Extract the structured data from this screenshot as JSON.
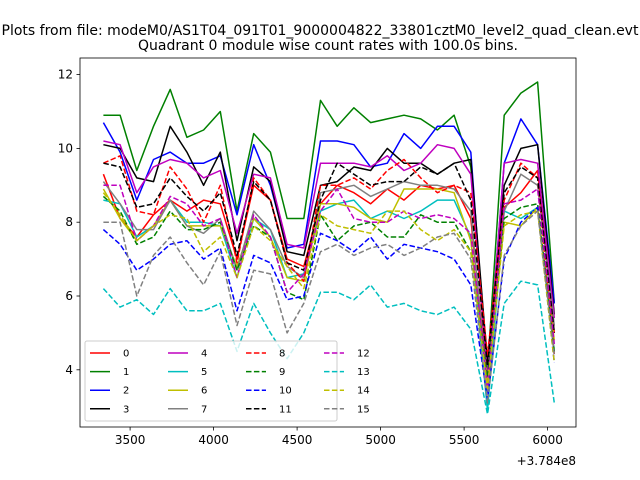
{
  "figure": {
    "suptitle": "Plots from file: modeM0/AS1T04_091T01_9000004822_33801cztM0_level2_quad_clean.evt"
  },
  "chart_data": {
    "type": "line",
    "title": "Quadrant 0 module wise count rates with 100.0s bins.",
    "xlabel": "",
    "ylabel": "",
    "x_offset_label": "+3.784e8",
    "xlim": [
      3200,
      6170
    ],
    "ylim": [
      2.45,
      12.45
    ],
    "xticks": [
      3500,
      4000,
      4500,
      5000,
      5500,
      6000
    ],
    "yticks": [
      4,
      6,
      8,
      10,
      12
    ],
    "x": [
      3340,
      3440,
      3540,
      3640,
      3740,
      3840,
      3940,
      4040,
      4140,
      4240,
      4340,
      4440,
      4540,
      4640,
      4740,
      4840,
      4940,
      5040,
      5140,
      5240,
      5340,
      5440,
      5540,
      5640,
      5740,
      5840,
      5940,
      6040
    ],
    "legend_position": "lower-left",
    "series": [
      {
        "name": "0",
        "color": "#ff0000",
        "dash": "solid",
        "values": [
          9.3,
          8.1,
          7.6,
          8.2,
          8.6,
          8.3,
          8.6,
          8.5,
          7.0,
          9.0,
          8.6,
          7.0,
          6.8,
          8.5,
          9.0,
          8.8,
          8.5,
          8.9,
          8.6,
          9.0,
          8.9,
          9.0,
          8.1,
          3.7,
          8.4,
          8.8,
          9.4,
          5.0
        ]
      },
      {
        "name": "1",
        "color": "#008000",
        "dash": "solid",
        "values": [
          10.9,
          10.9,
          9.4,
          10.6,
          11.6,
          10.3,
          10.5,
          11.0,
          8.3,
          10.4,
          9.9,
          8.1,
          8.1,
          11.3,
          10.6,
          11.1,
          10.7,
          10.8,
          10.9,
          10.8,
          10.5,
          10.9,
          9.5,
          4.0,
          10.9,
          11.5,
          11.8,
          5.8
        ]
      },
      {
        "name": "2",
        "color": "#0000ff",
        "dash": "solid",
        "values": [
          10.7,
          9.9,
          8.6,
          9.7,
          9.9,
          9.6,
          9.6,
          9.8,
          8.2,
          10.1,
          9.0,
          7.3,
          7.4,
          10.2,
          10.2,
          10.1,
          9.5,
          9.6,
          10.4,
          10.0,
          10.6,
          10.6,
          9.9,
          3.8,
          9.6,
          10.8,
          10.1,
          5.8
        ]
      },
      {
        "name": "3",
        "color": "#000000",
        "dash": "solid",
        "values": [
          10.1,
          10.0,
          9.2,
          9.1,
          10.6,
          9.9,
          9.0,
          9.9,
          7.5,
          9.5,
          9.1,
          7.2,
          7.1,
          9.0,
          9.1,
          9.5,
          9.4,
          10.0,
          9.6,
          9.6,
          9.3,
          9.6,
          9.7,
          4.2,
          9.0,
          10.0,
          10.1,
          5.5
        ]
      },
      {
        "name": "4",
        "color": "#bf00bf",
        "dash": "solid",
        "values": [
          10.2,
          10.1,
          8.8,
          9.5,
          9.7,
          9.6,
          9.2,
          9.4,
          7.7,
          9.3,
          9.2,
          7.4,
          7.3,
          9.6,
          9.6,
          9.6,
          9.5,
          9.8,
          9.4,
          9.6,
          10.1,
          10.0,
          9.3,
          3.8,
          9.6,
          9.7,
          9.6,
          5.4
        ]
      },
      {
        "name": "5",
        "color": "#00bfbf",
        "dash": "solid",
        "values": [
          8.6,
          8.5,
          7.6,
          7.9,
          8.6,
          8.0,
          8.0,
          7.9,
          6.5,
          8.1,
          7.8,
          6.5,
          6.6,
          8.3,
          8.5,
          8.6,
          8.1,
          8.3,
          8.1,
          8.3,
          8.6,
          8.6,
          7.6,
          2.9,
          8.3,
          8.1,
          8.4,
          4.5
        ]
      },
      {
        "name": "6",
        "color": "#bfbf00",
        "dash": "solid",
        "values": [
          8.9,
          8.1,
          7.5,
          7.9,
          8.6,
          7.9,
          7.9,
          7.9,
          6.8,
          8.1,
          7.6,
          6.5,
          6.4,
          8.5,
          8.5,
          8.4,
          8.1,
          8.0,
          8.9,
          8.9,
          8.9,
          8.8,
          7.5,
          3.7,
          8.0,
          7.9,
          8.4,
          4.8
        ]
      },
      {
        "name": "7",
        "color": "#808080",
        "dash": "solid",
        "values": [
          9.1,
          8.5,
          7.8,
          7.8,
          8.6,
          7.9,
          7.7,
          8.1,
          6.7,
          8.3,
          7.8,
          6.8,
          6.5,
          8.8,
          8.9,
          9.0,
          8.7,
          8.9,
          9.1,
          9.0,
          9.0,
          8.9,
          8.3,
          3.4,
          8.3,
          9.3,
          9.0,
          5.2
        ]
      },
      {
        "name": "8",
        "color": "#ff0000",
        "dash": "dashed",
        "values": [
          9.6,
          9.8,
          8.3,
          8.2,
          9.5,
          8.9,
          8.0,
          9.0,
          6.9,
          9.2,
          8.6,
          6.9,
          6.4,
          9.0,
          9.0,
          9.2,
          8.9,
          9.4,
          9.7,
          9.2,
          8.8,
          9.0,
          8.8,
          4.4,
          8.6,
          9.6,
          9.2,
          4.4
        ]
      },
      {
        "name": "9",
        "color": "#008000",
        "dash": "dashed",
        "values": [
          8.7,
          8.3,
          7.4,
          7.6,
          8.3,
          7.8,
          7.8,
          8.0,
          6.7,
          7.9,
          7.6,
          6.1,
          5.9,
          8.2,
          7.5,
          7.9,
          8.0,
          7.6,
          7.6,
          8.2,
          8.0,
          8.0,
          7.2,
          3.8,
          8.1,
          8.4,
          8.5,
          4.5
        ]
      },
      {
        "name": "10",
        "color": "#0000ff",
        "dash": "dashed",
        "values": [
          7.8,
          7.4,
          6.7,
          7.0,
          7.4,
          7.5,
          7.0,
          7.3,
          5.6,
          7.1,
          6.9,
          5.9,
          6.0,
          7.7,
          7.5,
          7.2,
          7.6,
          7.0,
          7.4,
          7.3,
          7.2,
          7.0,
          6.3,
          3.2,
          7.0,
          8.0,
          8.4,
          4.2
        ]
      },
      {
        "name": "11",
        "color": "#000000",
        "dash": "dashed",
        "values": [
          9.6,
          9.5,
          8.4,
          8.5,
          9.2,
          8.7,
          8.3,
          8.8,
          7.1,
          9.1,
          8.6,
          6.9,
          6.7,
          8.6,
          9.6,
          9.3,
          9.0,
          9.1,
          9.1,
          9.5,
          9.3,
          9.6,
          8.6,
          4.1,
          8.8,
          9.5,
          9.2,
          5.0
        ]
      },
      {
        "name": "12",
        "color": "#bf00bf",
        "dash": "dashed",
        "values": [
          9.0,
          9.0,
          7.5,
          7.9,
          8.7,
          8.5,
          7.9,
          8.1,
          6.5,
          8.2,
          7.6,
          6.1,
          6.6,
          8.3,
          8.9,
          8.1,
          8.0,
          8.0,
          8.3,
          8.1,
          8.2,
          8.1,
          7.7,
          3.5,
          8.5,
          8.6,
          8.9,
          4.7
        ]
      },
      {
        "name": "13",
        "color": "#00bfbf",
        "dash": "dashed",
        "values": [
          6.2,
          5.7,
          5.9,
          5.5,
          6.2,
          5.6,
          5.6,
          5.8,
          4.5,
          5.8,
          5.0,
          4.3,
          5.0,
          6.1,
          6.1,
          5.9,
          6.3,
          5.7,
          5.8,
          5.6,
          5.5,
          5.7,
          5.1,
          2.8,
          5.8,
          6.4,
          6.3,
          3.1
        ]
      },
      {
        "name": "14",
        "color": "#bfbf00",
        "dash": "dashed",
        "values": [
          8.8,
          8.2,
          7.5,
          7.9,
          8.2,
          8.1,
          7.2,
          7.6,
          6.5,
          7.9,
          7.5,
          6.8,
          6.2,
          8.2,
          7.9,
          7.8,
          7.7,
          8.3,
          8.3,
          7.8,
          7.5,
          7.8,
          7.2,
          3.5,
          7.9,
          8.2,
          8.3,
          4.2
        ]
      },
      {
        "name": "15",
        "color": "#808080",
        "dash": "dashed",
        "values": [
          8.0,
          8.0,
          6.0,
          7.1,
          7.6,
          6.9,
          6.3,
          7.2,
          5.2,
          6.7,
          6.6,
          5.0,
          5.8,
          7.2,
          7.4,
          7.1,
          7.3,
          7.4,
          7.1,
          7.3,
          7.6,
          7.7,
          7.0,
          3.1,
          7.1,
          7.9,
          8.3,
          4.4
        ]
      }
    ]
  }
}
